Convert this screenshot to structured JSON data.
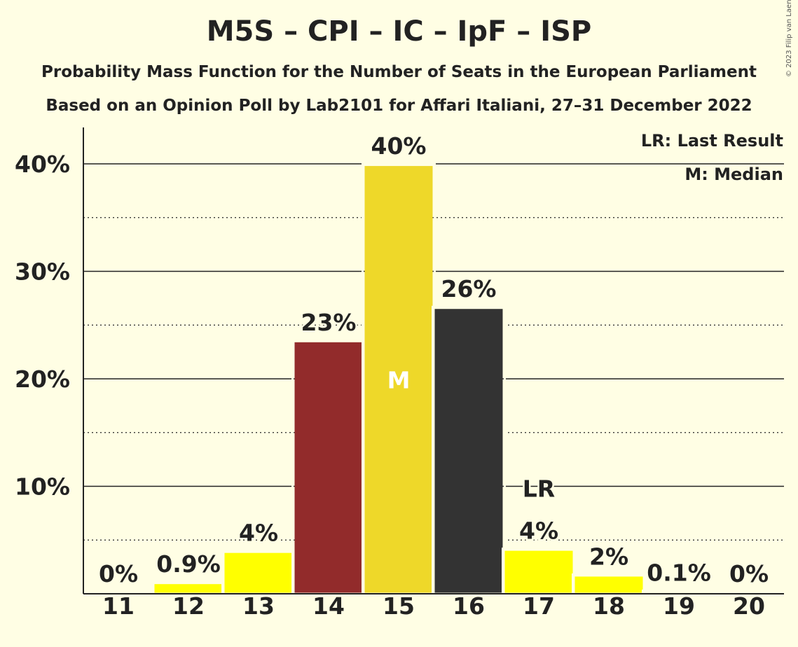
{
  "title": "M5S – CPI – IC – IpF – ISP",
  "subtitle1": "Probability Mass Function for the Number of Seats in the European Parliament",
  "subtitle2": "Based on an Opinion Poll by Lab2101 for Affari Italiani, 27–31 December 2022",
  "copyright": "© 2023 Filip van Laenen",
  "legend": {
    "last_result": "LR: Last Result",
    "median": "M: Median"
  },
  "chart_data": {
    "type": "bar",
    "categories": [
      "11",
      "12",
      "13",
      "14",
      "15",
      "16",
      "17",
      "18",
      "19",
      "20"
    ],
    "values": [
      0,
      0.9,
      3.8,
      23.4,
      39.8,
      26.5,
      4.0,
      1.6,
      0.1,
      0
    ],
    "labels": [
      "0%",
      "0.9%",
      "4%",
      "23%",
      "40%",
      "26%",
      "4%",
      "2%",
      "0.1%",
      "0%"
    ],
    "colors": [
      "#FFFF00",
      "#FFFF00",
      "#FFFF00",
      "#922B2B",
      "#EED829",
      "#333333",
      "#FFFF00",
      "#FFFF00",
      "#FFFF00",
      "#FFFF00"
    ],
    "y_ticks": [
      10,
      20,
      30,
      40
    ],
    "y_tick_labels": [
      "10%",
      "20%",
      "30%",
      "40%"
    ],
    "ylim": [
      0,
      43
    ],
    "minor_gridlines": [
      5,
      15,
      25,
      35
    ],
    "median_category": "15",
    "median_marker": "M",
    "last_result_category": "17",
    "last_result_marker": "LR",
    "legend_position": "top-right"
  }
}
